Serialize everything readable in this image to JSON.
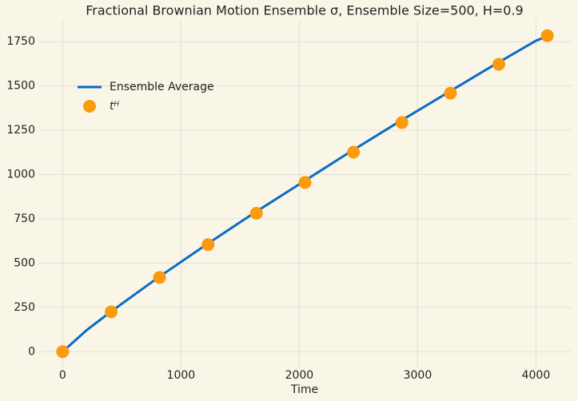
{
  "chart_data": {
    "type": "line",
    "title": "Fractional Brownian Motion Ensemble σ, Ensemble Size=500, H=0.9",
    "x_label": "Time",
    "series": [
      {
        "name": "Ensemble Average",
        "kind": "line",
        "color": "#0a6cc2",
        "x": [
          0,
          100,
          200,
          400,
          800,
          1200,
          1600,
          2000,
          2400,
          2800,
          3200,
          3600,
          4000,
          4096
        ],
        "values": [
          0,
          60,
          120,
          222,
          415,
          598,
          775,
          945,
          1115,
          1280,
          1440,
          1600,
          1755,
          1780
        ]
      },
      {
        "name": "tᴴ",
        "kind": "scatter",
        "color": "#fb9a0c",
        "x": [
          0,
          410,
          819,
          1229,
          1638,
          2048,
          2458,
          2867,
          3277,
          3686,
          4096
        ],
        "values": [
          0,
          225,
          419,
          604,
          781,
          955,
          1126,
          1293,
          1459,
          1622,
          1783
        ]
      }
    ],
    "xlim": [
      -205,
      4301
    ],
    "ylim": [
      -89,
      1872
    ],
    "xticks": [
      0,
      1000,
      2000,
      3000,
      4000
    ],
    "yticks": [
      0,
      250,
      500,
      750,
      1000,
      1250,
      1500,
      1750
    ],
    "grid": true,
    "legend": "upper left"
  }
}
